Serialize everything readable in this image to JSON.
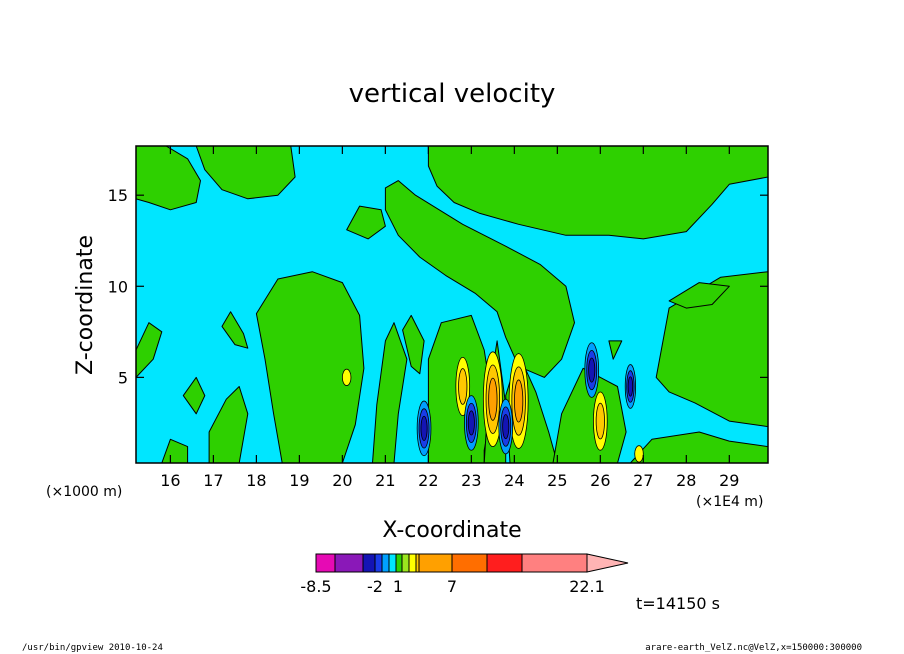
{
  "chart_data": {
    "type": "heatmap",
    "title": "vertical velocity",
    "xlabel": "X-coordinate",
    "ylabel": "Z-coordinate",
    "x_unit_left": "(×1000 m)",
    "x_unit_right": "(×1E4 m)",
    "xlim": [
      15.2,
      29.9
    ],
    "ylim": [
      0.3,
      17.7
    ],
    "x_ticks": [
      "16",
      "17",
      "18",
      "19",
      "20",
      "21",
      "22",
      "23",
      "24",
      "25",
      "26",
      "27",
      "28",
      "29"
    ],
    "y_ticks": [
      "5",
      "10",
      "15"
    ],
    "colorbar": {
      "levels": [
        -8.5,
        -6,
        -4,
        -3,
        -2,
        -1,
        0,
        1,
        2,
        3,
        4,
        7,
        10,
        13,
        22.1
      ],
      "tick_labels": [
        "-8.5",
        "-2",
        "1",
        "7",
        "22.1"
      ],
      "colors": [
        "#e60ab4",
        "#8a18b8",
        "#1414b4",
        "#1a3ce8",
        "#00a0ff",
        "#00e6ff",
        "#2ed000",
        "#9be61e",
        "#ffff00",
        "#ffc800",
        "#ffa000",
        "#ff6e00",
        "#ff1e1e",
        "#ff8080",
        "#ffb4b4"
      ]
    },
    "annotation": "t=14150 s",
    "features": [
      {
        "kind": "updraft-core",
        "level": "strong",
        "x": 23.5,
        "z": 3.8
      },
      {
        "kind": "updraft-core",
        "level": "strong",
        "x": 24.1,
        "z": 3.7
      },
      {
        "kind": "updraft-core",
        "level": "moderate",
        "x": 22.8,
        "z": 4.5
      },
      {
        "kind": "updraft-core",
        "level": "moderate",
        "x": 26.0,
        "z": 2.6
      },
      {
        "kind": "updraft-core",
        "level": "weak",
        "x": 20.1,
        "z": 5.0
      },
      {
        "kind": "updraft-core",
        "level": "weak",
        "x": 26.9,
        "z": 0.8
      },
      {
        "kind": "downdraft-core",
        "level": "moderate",
        "x": 21.9,
        "z": 2.2
      },
      {
        "kind": "downdraft-core",
        "level": "moderate",
        "x": 23.0,
        "z": 2.5
      },
      {
        "kind": "downdraft-core",
        "level": "moderate",
        "x": 23.8,
        "z": 2.3
      },
      {
        "kind": "downdraft-core",
        "level": "moderate",
        "x": 25.8,
        "z": 5.4
      },
      {
        "kind": "downdraft-core",
        "level": "weak",
        "x": 26.7,
        "z": 4.5
      }
    ]
  },
  "footer": {
    "left": "/usr/bin/gpview 2010-10-24",
    "right": "arare-earth_VelZ.nc@VelZ,x=150000:300000"
  }
}
